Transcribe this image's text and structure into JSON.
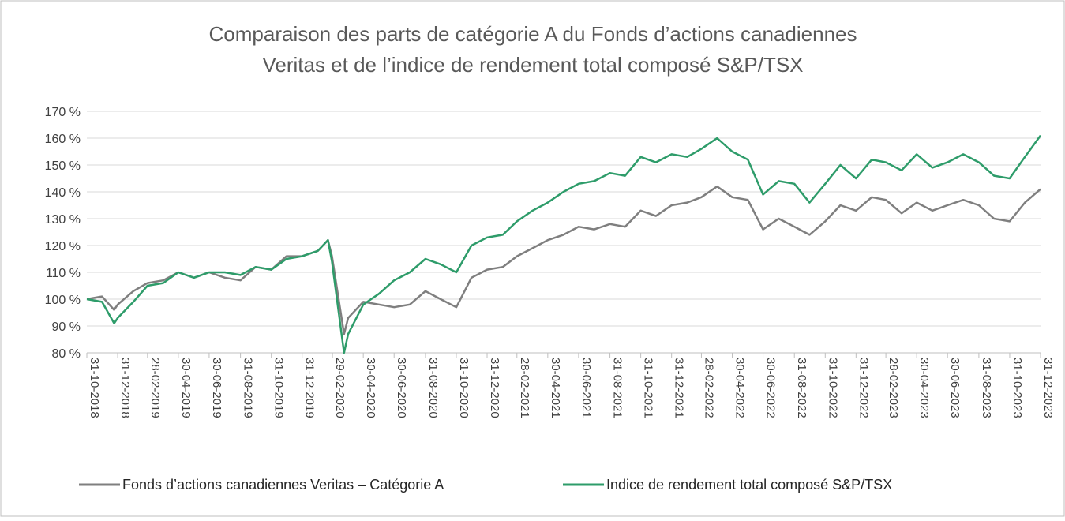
{
  "chart_data": {
    "type": "line",
    "title": [
      "Comparaison des parts de catégorie A du Fonds d’actions canadiennes",
      "Veritas et de l’indice de rendement total composé S&P/TSX"
    ],
    "x": [
      "31-10-2018",
      "30-11-2018",
      "24-12-2018",
      "31-12-2018",
      "31-01-2019",
      "28-02-2019",
      "31-03-2019",
      "30-04-2019",
      "31-05-2019",
      "30-06-2019",
      "31-07-2019",
      "31-08-2019",
      "30-09-2019",
      "31-10-2019",
      "30-11-2019",
      "31-12-2019",
      "31-01-2020",
      "20-02-2020",
      "28-02-2020",
      "23-03-2020",
      "31-03-2020",
      "30-04-2020",
      "31-05-2020",
      "30-06-2020",
      "31-07-2020",
      "31-08-2020",
      "30-09-2020",
      "31-10-2020",
      "30-11-2020",
      "31-12-2020",
      "31-01-2021",
      "28-02-2021",
      "31-03-2021",
      "30-04-2021",
      "31-05-2021",
      "30-06-2021",
      "31-07-2021",
      "31-08-2021",
      "30-09-2021",
      "31-10-2021",
      "30-11-2021",
      "31-12-2021",
      "31-01-2022",
      "28-02-2022",
      "31-03-2022",
      "30-04-2022",
      "31-05-2022",
      "30-06-2022",
      "31-07-2022",
      "31-08-2022",
      "30-09-2022",
      "31-10-2022",
      "30-11-2022",
      "31-12-2022",
      "31-01-2023",
      "28-02-2023",
      "31-03-2023",
      "30-04-2023",
      "31-05-2023",
      "30-06-2023",
      "31-07-2023",
      "31-08-2023",
      "30-09-2023",
      "31-10-2023",
      "30-11-2023",
      "31-12-2023"
    ],
    "series": [
      {
        "name": "Fonds d’actions canadiennes Veritas – Catégorie A",
        "color": "#7f7f7f",
        "values": [
          100,
          101,
          96,
          98,
          103,
          106,
          107,
          110,
          108,
          110,
          108,
          107,
          112,
          111,
          116,
          116,
          118,
          122,
          116,
          87,
          93,
          99,
          98,
          97,
          98,
          103,
          100,
          97,
          108,
          111,
          112,
          116,
          119,
          122,
          124,
          127,
          126,
          128,
          127,
          133,
          131,
          135,
          136,
          138,
          142,
          138,
          137,
          126,
          130,
          127,
          124,
          129,
          135,
          133,
          138,
          137,
          132,
          136,
          133,
          135,
          137,
          135,
          130,
          129,
          136,
          141
        ]
      },
      {
        "name": "Indice de rendement total composé S&P/TSX",
        "color": "#2e9c6a",
        "values": [
          100,
          99,
          91,
          93,
          99,
          105,
          106,
          110,
          108,
          110,
          110,
          109,
          112,
          111,
          115,
          116,
          118,
          122,
          114,
          80,
          87,
          98,
          102,
          107,
          110,
          115,
          113,
          110,
          120,
          123,
          124,
          129,
          133,
          136,
          140,
          143,
          144,
          147,
          146,
          153,
          151,
          154,
          153,
          156,
          160,
          155,
          152,
          139,
          144,
          143,
          136,
          143,
          150,
          145,
          152,
          151,
          148,
          154,
          149,
          151,
          154,
          151,
          146,
          145,
          153,
          161
        ]
      }
    ],
    "xlim": [
      "31-10-2018",
      "31-12-2023"
    ],
    "xticks": [
      "31-10-2018",
      "31-12-2018",
      "28-02-2019",
      "30-04-2019",
      "30-06-2019",
      "31-08-2019",
      "31-10-2019",
      "31-12-2019",
      "29-02-2020",
      "30-04-2020",
      "30-06-2020",
      "31-08-2020",
      "31-10-2020",
      "31-12-2020",
      "28-02-2021",
      "30-04-2021",
      "30-06-2021",
      "31-08-2021",
      "31-10-2021",
      "31-12-2021",
      "28-02-2022",
      "30-04-2022",
      "30-06-2022",
      "31-08-2022",
      "31-10-2022",
      "31-12-2022",
      "28-02-2023",
      "30-04-2023",
      "30-06-2023",
      "31-08-2023",
      "31-10-2023",
      "31-12-2023"
    ],
    "ylim": [
      80,
      170
    ],
    "yticks": [
      {
        "value": 80,
        "label": "80 %"
      },
      {
        "value": 90,
        "label": "90 %"
      },
      {
        "value": 100,
        "label": "100 %"
      },
      {
        "value": 110,
        "label": "110 %"
      },
      {
        "value": 120,
        "label": "120 %"
      },
      {
        "value": 130,
        "label": "130 %"
      },
      {
        "value": 140,
        "label": "140 %"
      },
      {
        "value": 150,
        "label": "150 %"
      },
      {
        "value": 160,
        "label": "160 %"
      },
      {
        "value": 170,
        "label": "170 %"
      }
    ],
    "grid": true,
    "legend": "bottom"
  }
}
